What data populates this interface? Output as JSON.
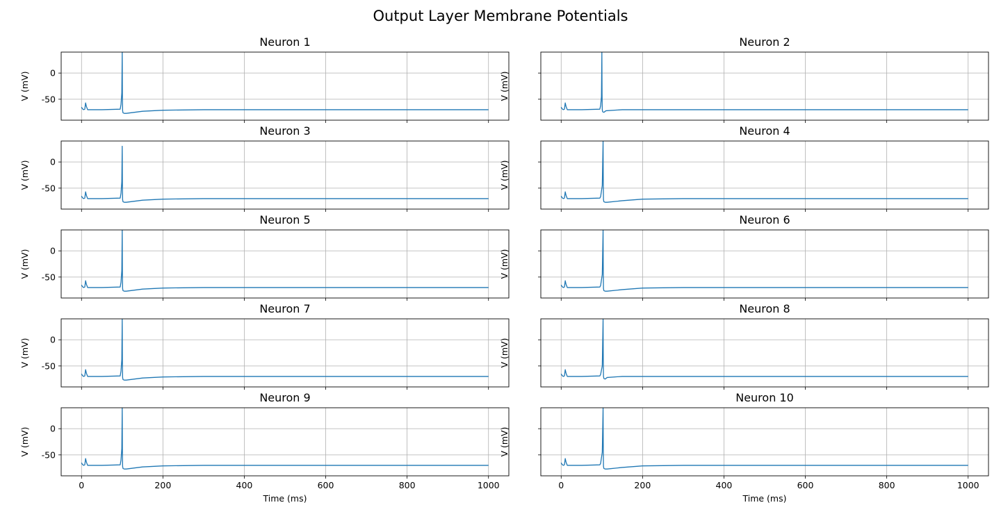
{
  "figure": {
    "title": "Output Layer Membrane Potentials"
  },
  "chart_data": {
    "type": "line",
    "layout": "5 rows x 2 columns, shared x axis",
    "line_color": "#1f77b4",
    "grid": true,
    "xlabel": "Time (ms)",
    "ylabel": "V (mV)",
    "xlim": [
      -50,
      1050
    ],
    "ylim": [
      -90,
      40
    ],
    "xticks": [
      0,
      200,
      400,
      600,
      800,
      1000
    ],
    "yticks": [
      0,
      -50
    ],
    "panels": [
      {
        "title": "Neuron 1",
        "spike_time": 100,
        "peak": 40,
        "undershoot": -77,
        "recovery_tau": 60,
        "x": [
          0,
          2,
          5,
          8,
          10,
          12,
          15,
          20,
          50,
          95,
          97,
          99,
          100,
          100.5,
          101,
          102,
          105,
          110,
          150,
          200,
          300,
          400,
          600,
          800,
          1000
        ],
        "y": [
          -65,
          -68,
          -70,
          -69,
          -57,
          -64,
          -70,
          -70,
          -70,
          -69,
          -60,
          -38,
          40,
          -40,
          -72,
          -76,
          -77,
          -77,
          -73,
          -71,
          -70,
          -70,
          -70,
          -70,
          -70
        ]
      },
      {
        "title": "Neuron 2",
        "spike_time": 100,
        "peak": 40,
        "undershoot": -75,
        "recovery_tau": 12,
        "x": [
          0,
          2,
          5,
          8,
          10,
          12,
          15,
          20,
          50,
          95,
          97,
          99,
          100,
          100.5,
          101,
          102,
          105,
          110,
          150,
          200,
          300,
          400,
          600,
          800,
          1000
        ],
        "y": [
          -65,
          -68,
          -70,
          -69,
          -57,
          -64,
          -70,
          -70,
          -70,
          -69,
          -62,
          -45,
          40,
          -40,
          -70,
          -74,
          -75,
          -72,
          -70,
          -70,
          -70,
          -70,
          -70,
          -70,
          -70
        ]
      },
      {
        "title": "Neuron 3",
        "spike_time": 100,
        "peak": 30,
        "undershoot": -77,
        "recovery_tau": 60,
        "x": [
          0,
          2,
          5,
          8,
          10,
          12,
          15,
          20,
          50,
          95,
          97,
          99,
          100,
          100.5,
          101,
          102,
          105,
          110,
          150,
          200,
          300,
          400,
          600,
          800,
          1000
        ],
        "y": [
          -65,
          -68,
          -70,
          -69,
          -57,
          -64,
          -70,
          -70,
          -70,
          -69,
          -60,
          -38,
          30,
          -40,
          -72,
          -76,
          -77,
          -77,
          -73,
          -71,
          -70,
          -70,
          -70,
          -70,
          -70
        ]
      },
      {
        "title": "Neuron 4",
        "spike_time": 103,
        "peak": 40,
        "undershoot": -77,
        "recovery_tau": 60,
        "x": [
          0,
          2,
          5,
          8,
          10,
          12,
          15,
          20,
          50,
          95,
          97,
          101,
          103,
          103.5,
          104,
          105,
          108,
          113,
          150,
          200,
          300,
          400,
          600,
          800,
          1000
        ],
        "y": [
          -65,
          -68,
          -70,
          -69,
          -57,
          -64,
          -70,
          -70,
          -70,
          -69,
          -66,
          -45,
          40,
          -40,
          -72,
          -76,
          -77,
          -77,
          -74,
          -71,
          -70,
          -70,
          -70,
          -70,
          -70
        ]
      },
      {
        "title": "Neuron 5",
        "spike_time": 100,
        "peak": 40,
        "undershoot": -77,
        "recovery_tau": 60,
        "x": [
          0,
          2,
          5,
          8,
          10,
          12,
          15,
          20,
          50,
          95,
          97,
          99,
          100,
          100.5,
          101,
          102,
          105,
          110,
          150,
          200,
          300,
          400,
          600,
          800,
          1000
        ],
        "y": [
          -65,
          -68,
          -70,
          -69,
          -57,
          -64,
          -70,
          -70,
          -70,
          -69,
          -60,
          -38,
          40,
          -40,
          -72,
          -76,
          -77,
          -77,
          -73,
          -71,
          -70,
          -70,
          -70,
          -70,
          -70
        ]
      },
      {
        "title": "Neuron 6",
        "spike_time": 103,
        "peak": 40,
        "undershoot": -77,
        "recovery_tau": 60,
        "x": [
          0,
          2,
          5,
          8,
          10,
          12,
          15,
          20,
          50,
          95,
          97,
          101,
          103,
          103.5,
          104,
          105,
          108,
          113,
          150,
          200,
          300,
          400,
          600,
          800,
          1000
        ],
        "y": [
          -65,
          -68,
          -70,
          -69,
          -57,
          -64,
          -70,
          -70,
          -70,
          -69,
          -66,
          -45,
          40,
          -40,
          -72,
          -76,
          -77,
          -77,
          -74,
          -71,
          -70,
          -70,
          -70,
          -70,
          -70
        ]
      },
      {
        "title": "Neuron 7",
        "spike_time": 100,
        "peak": 40,
        "undershoot": -77,
        "recovery_tau": 60,
        "x": [
          0,
          2,
          5,
          8,
          10,
          12,
          15,
          20,
          50,
          95,
          97,
          99,
          100,
          100.5,
          101,
          102,
          105,
          110,
          150,
          200,
          300,
          400,
          600,
          800,
          1000
        ],
        "y": [
          -65,
          -68,
          -70,
          -69,
          -57,
          -64,
          -70,
          -70,
          -70,
          -69,
          -60,
          -38,
          40,
          -40,
          -72,
          -76,
          -77,
          -77,
          -73,
          -71,
          -70,
          -70,
          -70,
          -70,
          -70
        ]
      },
      {
        "title": "Neuron 8",
        "spike_time": 103,
        "peak": 40,
        "undershoot": -75,
        "recovery_tau": 12,
        "x": [
          0,
          2,
          5,
          8,
          10,
          12,
          15,
          20,
          50,
          95,
          97,
          101,
          103,
          103.5,
          104,
          105,
          108,
          113,
          150,
          200,
          300,
          400,
          600,
          800,
          1000
        ],
        "y": [
          -65,
          -68,
          -70,
          -69,
          -57,
          -64,
          -70,
          -70,
          -70,
          -69,
          -66,
          -50,
          40,
          -40,
          -70,
          -74,
          -75,
          -72,
          -70,
          -70,
          -70,
          -70,
          -70,
          -70,
          -70
        ]
      },
      {
        "title": "Neuron 9",
        "spike_time": 100,
        "peak": 40,
        "undershoot": -77,
        "recovery_tau": 60,
        "x": [
          0,
          2,
          5,
          8,
          10,
          12,
          15,
          20,
          50,
          95,
          97,
          99,
          100,
          100.5,
          101,
          102,
          105,
          110,
          150,
          200,
          300,
          400,
          600,
          800,
          1000
        ],
        "y": [
          -65,
          -68,
          -70,
          -69,
          -57,
          -64,
          -70,
          -70,
          -70,
          -69,
          -60,
          -38,
          40,
          -40,
          -72,
          -76,
          -77,
          -77,
          -73,
          -71,
          -70,
          -70,
          -70,
          -70,
          -70
        ]
      },
      {
        "title": "Neuron 10",
        "spike_time": 103,
        "peak": 40,
        "undershoot": -77,
        "recovery_tau": 60,
        "x": [
          0,
          2,
          5,
          8,
          10,
          12,
          15,
          20,
          50,
          95,
          97,
          101,
          103,
          103.5,
          104,
          105,
          108,
          113,
          150,
          200,
          300,
          400,
          600,
          800,
          1000
        ],
        "y": [
          -65,
          -68,
          -70,
          -69,
          -57,
          -64,
          -70,
          -70,
          -70,
          -69,
          -66,
          -45,
          40,
          -40,
          -72,
          -76,
          -77,
          -77,
          -74,
          -71,
          -70,
          -70,
          -70,
          -70,
          -70
        ]
      }
    ]
  }
}
